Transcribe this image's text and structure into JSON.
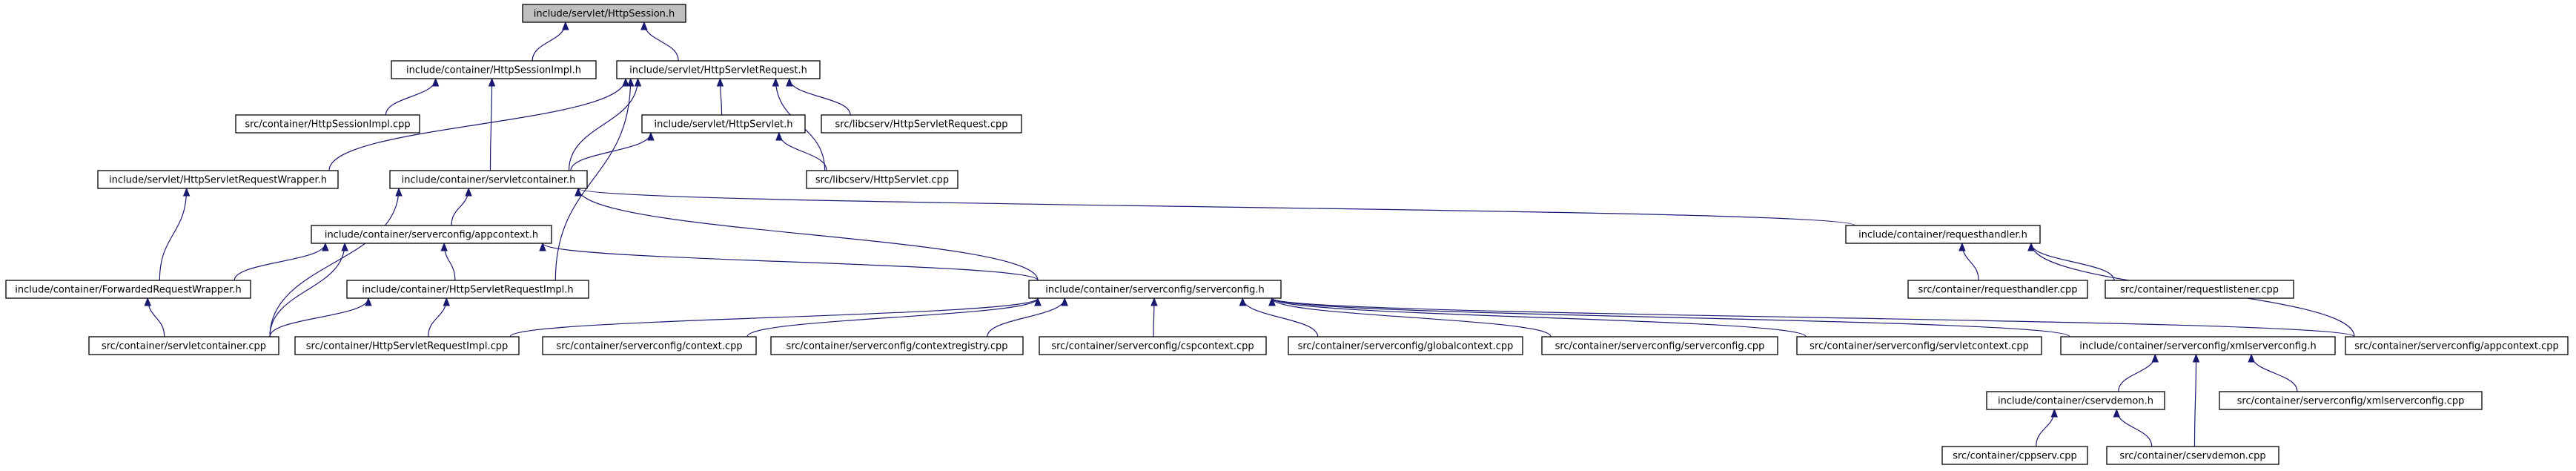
{
  "diagram": {
    "nodes": [
      {
        "id": "n0",
        "label": "include/servlet/HttpSession.h",
        "root": true
      },
      {
        "id": "n1",
        "label": "include/container/HttpSessionImpl.h"
      },
      {
        "id": "n2",
        "label": "include/servlet/HttpServletRequest.h"
      },
      {
        "id": "n3",
        "label": "src/container/HttpSessionImpl.cpp"
      },
      {
        "id": "n4",
        "label": "include/servlet/HttpServlet.h"
      },
      {
        "id": "n5",
        "label": "src/libcserv/HttpServletRequest.cpp"
      },
      {
        "id": "n6",
        "label": "include/servlet/HttpServletRequestWrapper.h"
      },
      {
        "id": "n7",
        "label": "include/container/servletcontainer.h"
      },
      {
        "id": "n8",
        "label": "src/libcserv/HttpServlet.cpp"
      },
      {
        "id": "n9",
        "label": "include/container/serverconfig/appcontext.h"
      },
      {
        "id": "n10",
        "label": "include/container/requesthandler.h"
      },
      {
        "id": "n11",
        "label": "include/container/ForwardedRequestWrapper.h"
      },
      {
        "id": "n12",
        "label": "include/container/HttpServletRequestImpl.h"
      },
      {
        "id": "n13",
        "label": "include/container/serverconfig/serverconfig.h"
      },
      {
        "id": "n14",
        "label": "src/container/requesthandler.cpp"
      },
      {
        "id": "n15",
        "label": "src/container/requestlistener.cpp"
      },
      {
        "id": "n16",
        "label": "src/container/servletcontainer.cpp"
      },
      {
        "id": "n17",
        "label": "src/container/HttpServletRequestImpl.cpp"
      },
      {
        "id": "n18",
        "label": "src/container/serverconfig/context.cpp"
      },
      {
        "id": "n19",
        "label": "src/container/serverconfig/contextregistry.cpp"
      },
      {
        "id": "n20",
        "label": "src/container/serverconfig/cspcontext.cpp"
      },
      {
        "id": "n21",
        "label": "src/container/serverconfig/globalcontext.cpp"
      },
      {
        "id": "n22",
        "label": "src/container/serverconfig/serverconfig.cpp"
      },
      {
        "id": "n23",
        "label": "src/container/serverconfig/servletcontext.cpp"
      },
      {
        "id": "n24",
        "label": "include/container/serverconfig/xmlserverconfig.h"
      },
      {
        "id": "n25",
        "label": "src/container/serverconfig/appcontext.cpp"
      },
      {
        "id": "n26",
        "label": "include/container/cservdemon.h"
      },
      {
        "id": "n27",
        "label": "src/container/serverconfig/xmlserverconfig.cpp"
      },
      {
        "id": "n28",
        "label": "src/container/cppserv.cpp"
      },
      {
        "id": "n29",
        "label": "src/container/cservdemon.cpp"
      }
    ],
    "edges": [
      {
        "from": "n1",
        "to": "n0"
      },
      {
        "from": "n2",
        "to": "n0"
      },
      {
        "from": "n3",
        "to": "n1"
      },
      {
        "from": "n7",
        "to": "n1"
      },
      {
        "from": "n4",
        "to": "n2"
      },
      {
        "from": "n5",
        "to": "n2"
      },
      {
        "from": "n6",
        "to": "n2"
      },
      {
        "from": "n7",
        "to": "n2"
      },
      {
        "from": "n8",
        "to": "n2"
      },
      {
        "from": "n12",
        "to": "n2"
      },
      {
        "from": "n7",
        "to": "n4"
      },
      {
        "from": "n8",
        "to": "n4"
      },
      {
        "from": "n11",
        "to": "n6"
      },
      {
        "from": "n9",
        "to": "n7"
      },
      {
        "from": "n10",
        "to": "n7"
      },
      {
        "from": "n13",
        "to": "n7"
      },
      {
        "from": "n16",
        "to": "n7"
      },
      {
        "from": "n11",
        "to": "n9"
      },
      {
        "from": "n12",
        "to": "n9"
      },
      {
        "from": "n13",
        "to": "n9"
      },
      {
        "from": "n16",
        "to": "n9"
      },
      {
        "from": "n14",
        "to": "n10"
      },
      {
        "from": "n15",
        "to": "n10"
      },
      {
        "from": "n25",
        "to": "n10"
      },
      {
        "from": "n16",
        "to": "n11"
      },
      {
        "from": "n16",
        "to": "n12"
      },
      {
        "from": "n17",
        "to": "n12"
      },
      {
        "from": "n17",
        "to": "n13"
      },
      {
        "from": "n18",
        "to": "n13"
      },
      {
        "from": "n19",
        "to": "n13"
      },
      {
        "from": "n20",
        "to": "n13"
      },
      {
        "from": "n21",
        "to": "n13"
      },
      {
        "from": "n22",
        "to": "n13"
      },
      {
        "from": "n23",
        "to": "n13"
      },
      {
        "from": "n24",
        "to": "n13"
      },
      {
        "from": "n25",
        "to": "n13"
      },
      {
        "from": "n26",
        "to": "n24"
      },
      {
        "from": "n27",
        "to": "n24"
      },
      {
        "from": "n29",
        "to": "n24"
      },
      {
        "from": "n28",
        "to": "n26"
      },
      {
        "from": "n29",
        "to": "n26"
      }
    ]
  }
}
